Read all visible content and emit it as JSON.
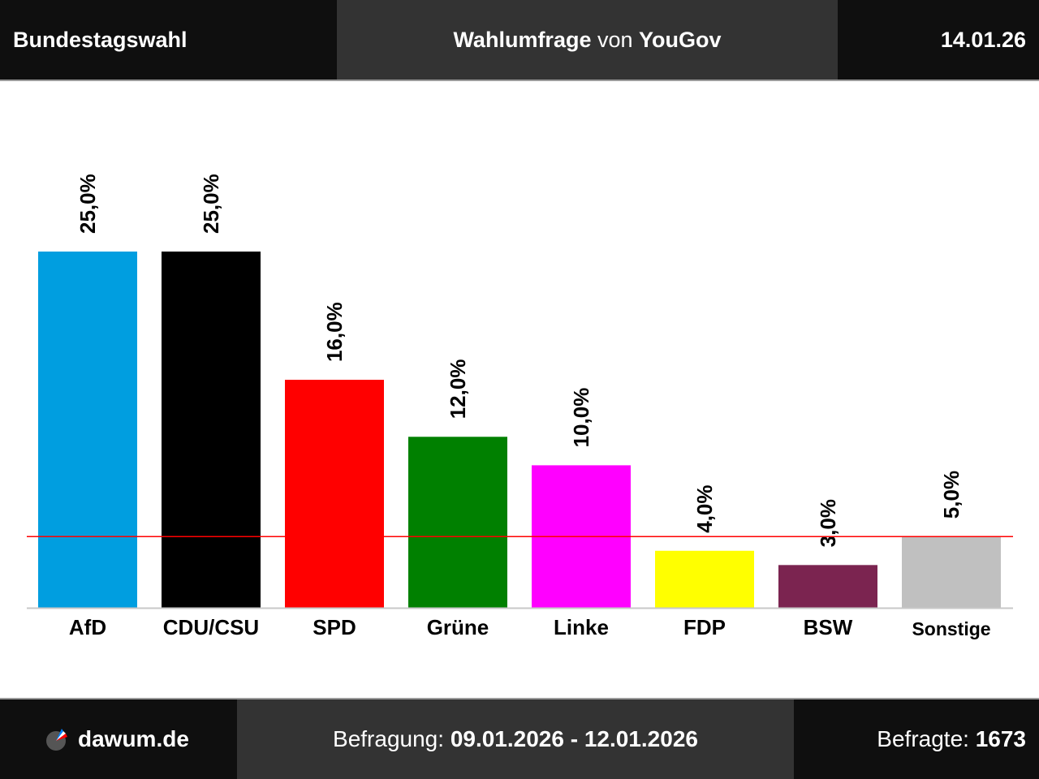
{
  "header": {
    "left_title": "Bundestagswahl",
    "center_prefix": "Wahlumfrage",
    "center_middle": " von ",
    "center_institute": "YouGov",
    "date": "14.01.26"
  },
  "footer": {
    "brand": "dawum.de",
    "survey_label": "Befragung: ",
    "survey_period": "09.01.2026 - 12.01.2026",
    "respondents_label": "Befragte: ",
    "respondents_count": "1673"
  },
  "chart_data": {
    "type": "bar",
    "categories": [
      "AfD",
      "CDU/CSU",
      "SPD",
      "Grüne",
      "Linke",
      "FDP",
      "BSW",
      "Sonstige"
    ],
    "values": [
      25.0,
      25.0,
      16.0,
      12.0,
      10.0,
      4.0,
      3.0,
      5.0
    ],
    "value_labels": [
      "25,0%",
      "25,0%",
      "16,0%",
      "12,0%",
      "10,0%",
      "4,0%",
      "3,0%",
      "5,0%"
    ],
    "colors": [
      "#009ee0",
      "#000000",
      "#ff0000",
      "#008000",
      "#ff00ff",
      "#ffff00",
      "#7b2450",
      "#c0c0c0"
    ],
    "threshold": 5.0,
    "threshold_color": "#ff0000",
    "ylim": [
      0,
      25
    ],
    "grid": false,
    "legend": false
  }
}
